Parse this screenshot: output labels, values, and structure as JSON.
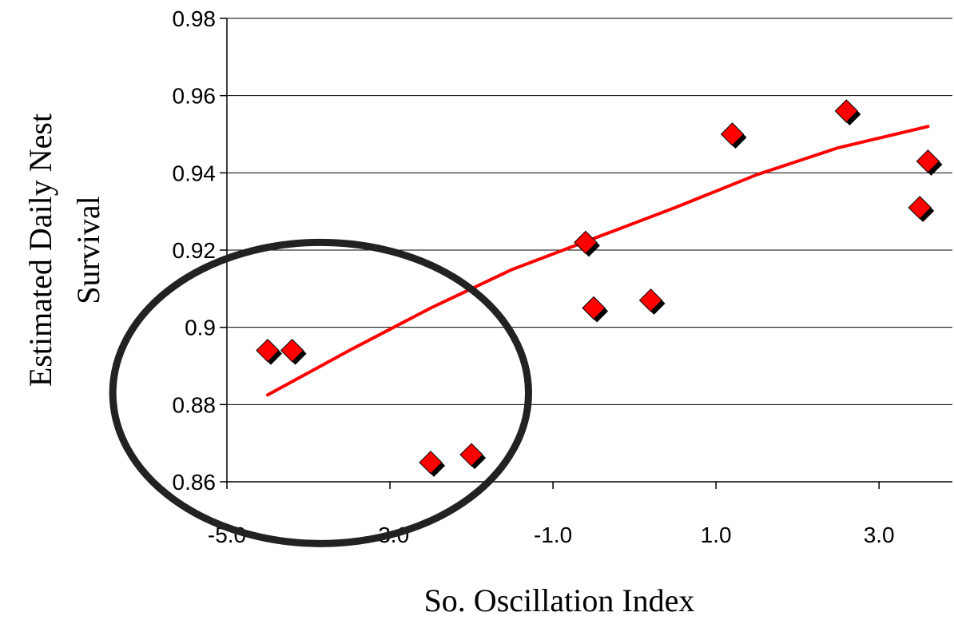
{
  "chart_data": {
    "type": "scatter",
    "title": "",
    "xlabel": "So. Oscillation Index",
    "ylabel_lines": [
      "Estimated Daily Nest",
      "Survival"
    ],
    "xlim": [
      -5.0,
      3.9
    ],
    "ylim": [
      0.86,
      0.98
    ],
    "x_ticks": [
      -5.0,
      -3.0,
      -1.0,
      1.0,
      3.0
    ],
    "x_tick_labels": [
      "-5.0",
      "-3.0",
      "-1.0",
      "1.0",
      "3.0"
    ],
    "y_ticks": [
      0.86,
      0.88,
      0.9,
      0.92,
      0.94,
      0.96,
      0.98
    ],
    "y_tick_labels": [
      "0.86",
      "0.88",
      "0.9",
      "0.92",
      "0.94",
      "0.96",
      "0.98"
    ],
    "grid": "horizontal",
    "marker_color": "#ff0000",
    "trend_color": "#ff0000",
    "points": [
      {
        "x": -4.5,
        "y": 0.894
      },
      {
        "x": -4.2,
        "y": 0.894
      },
      {
        "x": -2.5,
        "y": 0.865
      },
      {
        "x": -2.0,
        "y": 0.867
      },
      {
        "x": -0.6,
        "y": 0.922
      },
      {
        "x": -0.5,
        "y": 0.905
      },
      {
        "x": 0.2,
        "y": 0.907
      },
      {
        "x": 1.2,
        "y": 0.95
      },
      {
        "x": 2.6,
        "y": 0.956
      },
      {
        "x": 3.5,
        "y": 0.931
      },
      {
        "x": 3.6,
        "y": 0.943
      }
    ],
    "trendline": {
      "x": [
        -4.5,
        -3.5,
        -2.5,
        -1.5,
        -0.5,
        0.5,
        1.5,
        2.5,
        3.6
      ],
      "y": [
        0.8825,
        0.894,
        0.905,
        0.915,
        0.923,
        0.931,
        0.9395,
        0.9465,
        0.952
      ]
    },
    "annotations": [
      {
        "type": "ellipse",
        "stroke": "#222222",
        "center": {
          "x": -3.85,
          "y": 0.883
        },
        "rx": 2.55,
        "ry": 0.039
      }
    ]
  }
}
